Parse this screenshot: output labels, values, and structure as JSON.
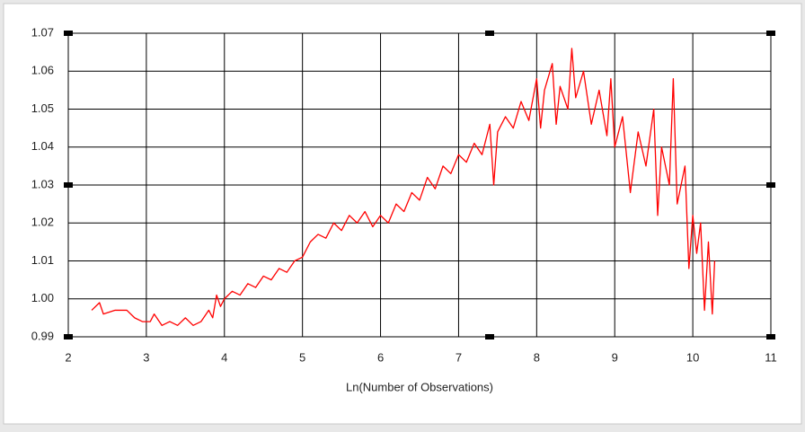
{
  "chart_data": {
    "type": "line",
    "x_label": "Ln(Number of Observations)",
    "xlim": [
      2,
      11
    ],
    "xticks": [
      2,
      3,
      4,
      5,
      6,
      7,
      8,
      9,
      10,
      11
    ],
    "ylim": [
      0.99,
      1.07
    ],
    "yticks": [
      0.99,
      {
        "value": 1,
        "label": "1.00"
      },
      1.01,
      1.02,
      1.03,
      1.04,
      1.05,
      1.06,
      1.07
    ],
    "grid": true,
    "series": [
      {
        "color": "#ff0000",
        "x": [
          2.3,
          2.4,
          2.45,
          2.6,
          2.75,
          2.85,
          2.95,
          3.05,
          3.1,
          3.2,
          3.3,
          3.4,
          3.5,
          3.6,
          3.7,
          3.8,
          3.85,
          3.9,
          3.95,
          4.0,
          4.1,
          4.2,
          4.3,
          4.4,
          4.5,
          4.6,
          4.7,
          4.8,
          4.9,
          5.0,
          5.1,
          5.2,
          5.3,
          5.4,
          5.5,
          5.6,
          5.7,
          5.8,
          5.9,
          6.0,
          6.1,
          6.2,
          6.3,
          6.4,
          6.5,
          6.6,
          6.7,
          6.8,
          6.9,
          7.0,
          7.1,
          7.2,
          7.3,
          7.4,
          7.45,
          7.5,
          7.6,
          7.7,
          7.8,
          7.9,
          8.0,
          8.05,
          8.1,
          8.2,
          8.25,
          8.3,
          8.4,
          8.45,
          8.5,
          8.6,
          8.7,
          8.8,
          8.9,
          8.95,
          9.0,
          9.1,
          9.2,
          9.3,
          9.4,
          9.5,
          9.55,
          9.6,
          9.7,
          9.75,
          9.8,
          9.9,
          9.95,
          10.0,
          10.05,
          10.1,
          10.15,
          10.2,
          10.25,
          10.28
        ],
        "values": [
          0.997,
          0.999,
          0.996,
          0.997,
          0.997,
          0.995,
          0.994,
          0.994,
          0.996,
          0.993,
          0.994,
          0.993,
          0.995,
          0.993,
          0.994,
          0.997,
          0.995,
          1.001,
          0.998,
          1.0,
          1.002,
          1.001,
          1.004,
          1.003,
          1.006,
          1.005,
          1.008,
          1.007,
          1.01,
          1.011,
          1.015,
          1.017,
          1.016,
          1.02,
          1.018,
          1.022,
          1.02,
          1.023,
          1.019,
          1.022,
          1.02,
          1.025,
          1.023,
          1.028,
          1.026,
          1.032,
          1.029,
          1.035,
          1.033,
          1.038,
          1.036,
          1.041,
          1.038,
          1.046,
          1.03,
          1.044,
          1.048,
          1.045,
          1.052,
          1.047,
          1.058,
          1.045,
          1.055,
          1.062,
          1.046,
          1.056,
          1.05,
          1.066,
          1.053,
          1.06,
          1.046,
          1.055,
          1.043,
          1.058,
          1.04,
          1.048,
          1.028,
          1.044,
          1.035,
          1.05,
          1.022,
          1.04,
          1.03,
          1.058,
          1.025,
          1.035,
          1.008,
          1.022,
          1.012,
          1.02,
          0.997,
          1.015,
          0.996,
          1.01
        ]
      }
    ]
  }
}
